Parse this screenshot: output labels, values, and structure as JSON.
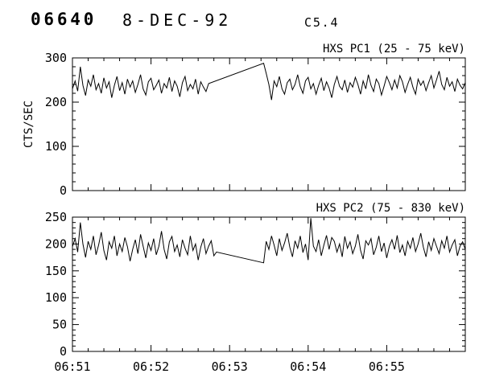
{
  "header": {
    "event_number": "06640",
    "date": "8-DEC-92",
    "goes_class": "C5.4"
  },
  "chart_data": [
    {
      "type": "line",
      "title": "HXS PC1 (25 - 75 keV)",
      "ylabel": "CTS/SEC",
      "ylim": [
        0,
        300
      ],
      "yticks": [
        0,
        100,
        200,
        300
      ],
      "y_minor_step": 20,
      "xlim_seconds": [
        0,
        300
      ],
      "xticks_seconds": [
        0,
        60,
        120,
        180,
        240
      ],
      "x_minor_step": 12,
      "xtick_labels": [
        "06:51",
        "06:52",
        "06:53",
        "06:54",
        "06:55"
      ],
      "show_xtick_labels": false,
      "line_color": "#000000",
      "series": [
        {
          "name": "hxs-pc1",
          "gap_connected": true,
          "segments": [
            {
              "x_start": 0,
              "x_step": 2,
              "y": [
                230,
                248,
                225,
                280,
                238,
                215,
                250,
                236,
                262,
                228,
                242,
                220,
                255,
                232,
                246,
                210,
                238,
                258,
                226,
                244,
                218,
                252,
                234,
                248,
                222,
                240,
                262,
                230,
                216,
                246,
                254,
                228,
                238,
                250,
                220,
                242,
                232,
                256,
                224,
                248,
                236,
                212,
                244,
                258,
                226,
                240,
                230,
                252,
                218,
                246,
                234,
                224,
                242
              ]
            },
            {
              "x_start": 146,
              "x_step": 2,
              "y": [
                288,
                265,
                240,
                205,
                248,
                235,
                258,
                230,
                218,
                244,
                252,
                228,
                240,
                262,
                235,
                220,
                248,
                256,
                230,
                242,
                218,
                238,
                254,
                226,
                246,
                232,
                210,
                240,
                258,
                236,
                228,
                250,
                222,
                244,
                234,
                256,
                240,
                218,
                248,
                230,
                262,
                238,
                224,
                252,
                242,
                216,
                236,
                258,
                244,
                228,
                250,
                232,
                260,
                246,
                222,
                240,
                256,
                234,
                218,
                252,
                238,
                248,
                226,
                244,
                260,
                232,
                250,
                270,
                240,
                228,
                256,
                236,
                246,
                224,
                252,
                238,
                230,
                244
              ]
            }
          ]
        }
      ]
    },
    {
      "type": "line",
      "title": "HXS PC2 (75 - 830 keV)",
      "ylabel": "",
      "ylim": [
        0,
        250
      ],
      "yticks": [
        0,
        50,
        100,
        150,
        200,
        250
      ],
      "y_minor_step": 10,
      "xlim_seconds": [
        0,
        300
      ],
      "xticks_seconds": [
        0,
        60,
        120,
        180,
        240
      ],
      "x_minor_step": 12,
      "xtick_labels": [
        "06:51",
        "06:52",
        "06:53",
        "06:54",
        "06:55"
      ],
      "show_xtick_labels": true,
      "line_color": "#000000",
      "series": [
        {
          "name": "hxs-pc2",
          "gap_connected": true,
          "segments": [
            {
              "x_start": 0,
              "x_step": 2,
              "y": [
                195,
                210,
                185,
                240,
                200,
                175,
                205,
                190,
                215,
                180,
                198,
                222,
                188,
                170,
                204,
                192,
                215,
                178,
                200,
                186,
                212,
                195,
                168,
                190,
                208,
                182,
                218,
                196,
                174,
                202,
                188,
                210,
                180,
                196,
                224,
                190,
                172,
                204,
                214,
                186,
                198,
                176,
                208,
                192,
                180,
                215,
                188,
                200,
                170,
                194,
                210,
                182,
                196,
                206,
                178,
                185
              ]
            },
            {
              "x_start": 146,
              "x_step": 2,
              "y": [
                165,
                205,
                190,
                215,
                198,
                178,
                210,
                188,
                202,
                220,
                194,
                176,
                206,
                192,
                215,
                184,
                200,
                170,
                248,
                196,
                186,
                208,
                178,
                198,
                216,
                190,
                212,
                205,
                185,
                200,
                176,
                214,
                192,
                204,
                182,
                196,
                218,
                188,
                172,
                206,
                198,
                210,
                180,
                194,
                215,
                186,
                202,
                174,
                196,
                208,
                190,
                216,
                184,
                198,
                178,
                205,
                192,
                212,
                186,
                200,
                220,
                194,
                176,
                204,
                188,
                210,
                196,
                182,
                206,
                192,
                215,
                185,
                198,
                208,
                178,
                196,
                204,
                190
              ]
            }
          ]
        }
      ]
    }
  ]
}
